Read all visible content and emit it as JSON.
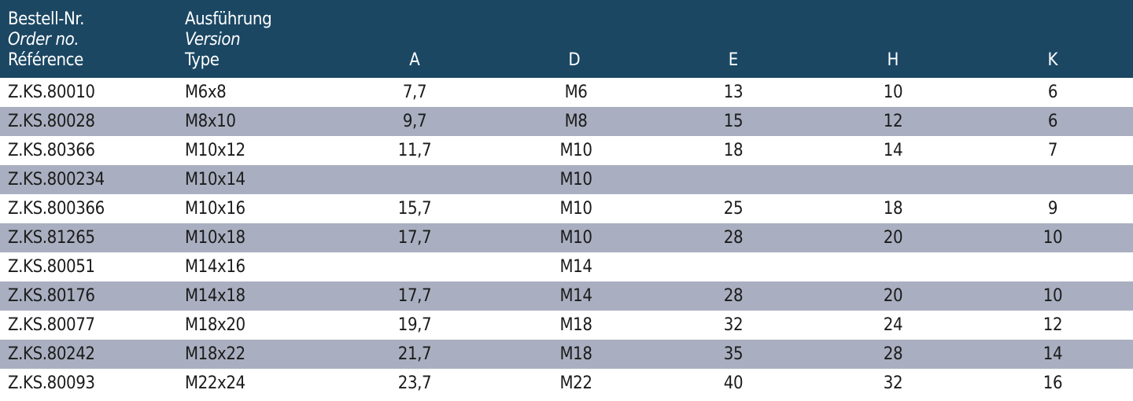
{
  "header": {
    "order_labels": [
      "Bestell-Nr.",
      "Order no.",
      "Référence"
    ],
    "version_labels": [
      "Ausführung",
      "Version",
      "Type"
    ],
    "columns": [
      "A",
      "D",
      "E",
      "H",
      "K"
    ]
  },
  "rows": [
    {
      "order": "Z.KS.80010",
      "version": "M6x8",
      "A": "7,7",
      "D": "M6",
      "E": "13",
      "H": "10",
      "K": "6"
    },
    {
      "order": "Z.KS.80028",
      "version": "M8x10",
      "A": "9,7",
      "D": "M8",
      "E": "15",
      "H": "12",
      "K": "6"
    },
    {
      "order": "Z.KS.80366",
      "version": "M10x12",
      "A": "11,7",
      "D": "M10",
      "E": "18",
      "H": "14",
      "K": "7"
    },
    {
      "order": "Z.KS.800234",
      "version": "M10x14",
      "A": "",
      "D": "M10",
      "E": "",
      "H": "",
      "K": ""
    },
    {
      "order": "Z.KS.800366",
      "version": "M10x16",
      "A": "15,7",
      "D": "M10",
      "E": "25",
      "H": "18",
      "K": "9"
    },
    {
      "order": "Z.KS.81265",
      "version": "M10x18",
      "A": "17,7",
      "D": "M10",
      "E": "28",
      "H": "20",
      "K": "10"
    },
    {
      "order": "Z.KS.80051",
      "version": "M14x16",
      "A": "",
      "D": "M14",
      "E": "",
      "H": "",
      "K": ""
    },
    {
      "order": "Z.KS.80176",
      "version": "M14x18",
      "A": "17,7",
      "D": "M14",
      "E": "28",
      "H": "20",
      "K": "10"
    },
    {
      "order": "Z.KS.80077",
      "version": "M18x20",
      "A": "19,7",
      "D": "M18",
      "E": "32",
      "H": "24",
      "K": "12"
    },
    {
      "order": "Z.KS.80242",
      "version": "M18x22",
      "A": "21,7",
      "D": "M18",
      "E": "35",
      "H": "28",
      "K": "14"
    },
    {
      "order": "Z.KS.80093",
      "version": "M22x24",
      "A": "23,7",
      "D": "M22",
      "E": "40",
      "H": "32",
      "K": "16"
    }
  ],
  "colors": {
    "header_bg": "#1b4763",
    "header_text": "#ffffff",
    "row_shaded": "#a9afc0",
    "row_plain": "#ffffff",
    "body_text": "#1b1b1b"
  }
}
